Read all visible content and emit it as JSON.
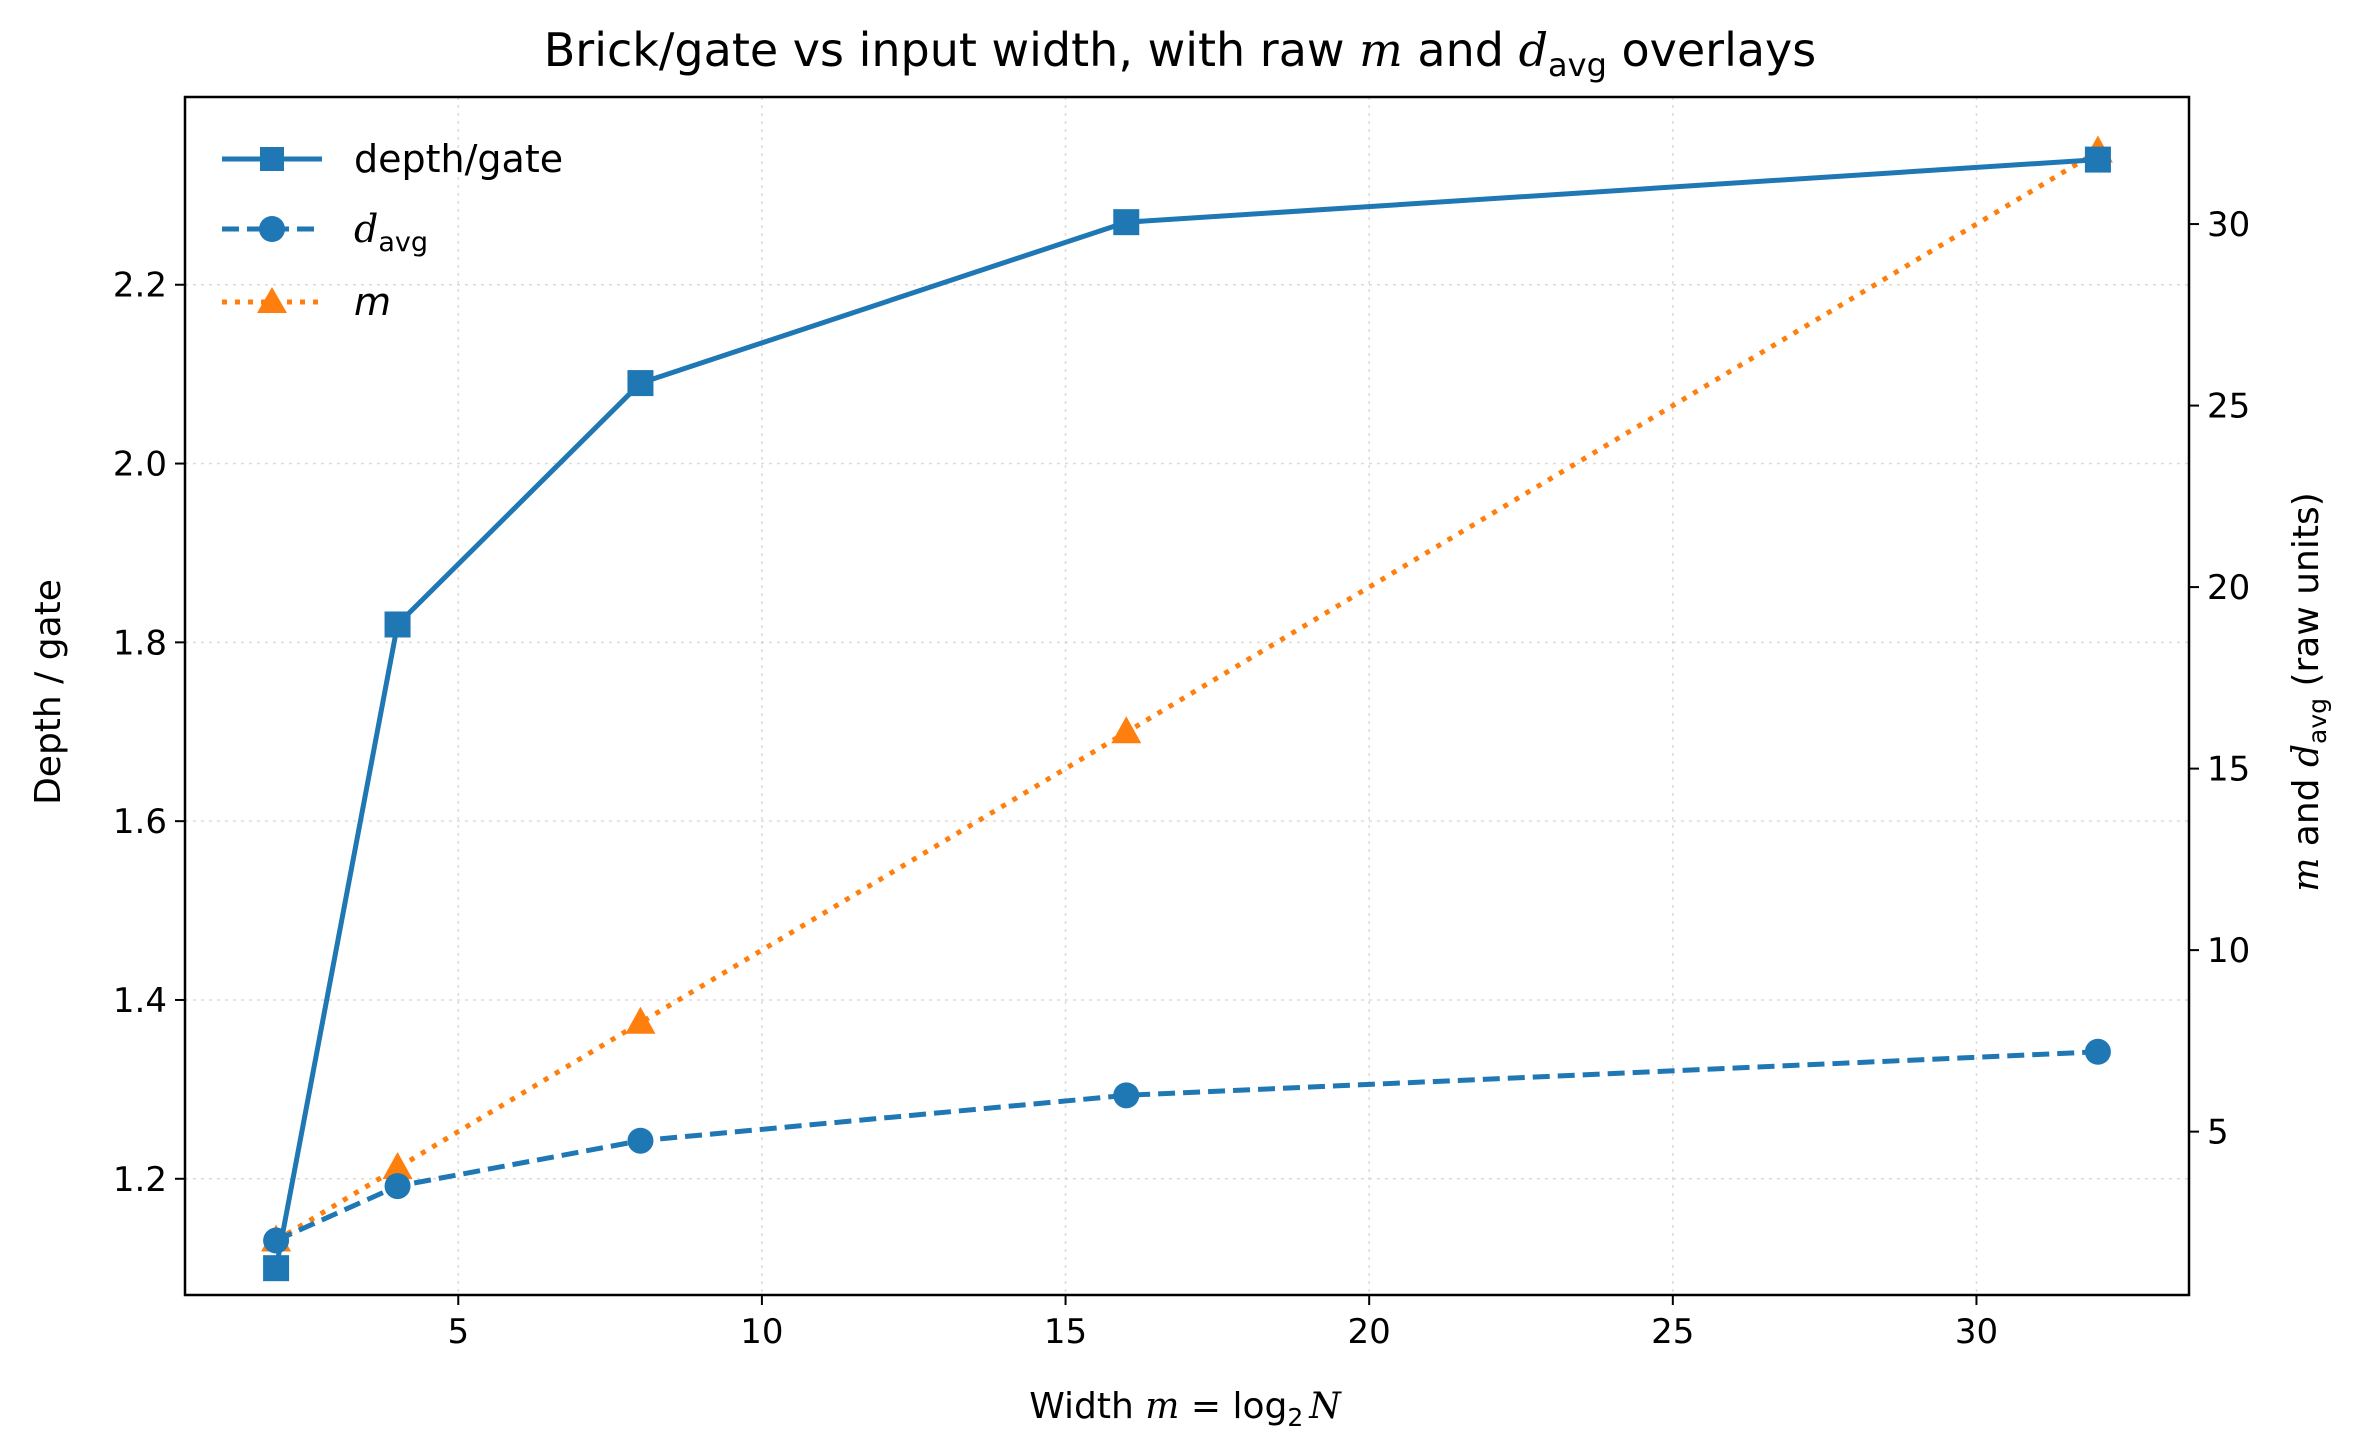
{
  "chart_data": {
    "type": "line",
    "title": "Brick/gate vs input width, with raw m and d_avg overlays",
    "title_parts": {
      "prefix": "Brick/gate vs input width, with raw ",
      "m": "m",
      "mid": " and ",
      "d": "d",
      "sub": "avg",
      "suffix": " overlays"
    },
    "xlabel": "Width m = log2 N",
    "xlabel_parts": {
      "prefix": "Width ",
      "m": "m",
      "eq": " = log",
      "sub": "2",
      "n": "N"
    },
    "ylabel_left": "Depth / gate",
    "ylabel_right": "m and d_avg (raw units)",
    "ylabel_right_parts": {
      "m": "m",
      "mid": " and ",
      "d": "d",
      "sub": "avg",
      "suffix": " (raw units)"
    },
    "x": [
      2,
      4,
      8,
      16,
      32
    ],
    "xlim": [
      0.5,
      33.5
    ],
    "xticks": [
      5,
      10,
      15,
      20,
      25,
      30
    ],
    "ylim_left": [
      1.07,
      2.41
    ],
    "yticks_left": [
      1.2,
      1.4,
      1.6,
      1.8,
      2.0,
      2.2
    ],
    "ylim_right": [
      0.5,
      33.5
    ],
    "yticks_right": [
      5,
      10,
      15,
      20,
      25,
      30
    ],
    "grid": true,
    "legend_position": "top-left",
    "series": [
      {
        "name": "depth/gate",
        "axis": "left",
        "values": [
          1.1,
          1.82,
          2.09,
          2.27,
          2.34
        ],
        "color": "#1f77b4",
        "style": "solid",
        "marker": "square"
      },
      {
        "name": "d_avg",
        "axis": "right",
        "values": [
          2.0,
          3.5,
          4.75,
          6.0,
          7.2
        ],
        "color": "#1f77b4",
        "style": "dashed",
        "marker": "circle"
      },
      {
        "name": "m",
        "axis": "right",
        "values": [
          2,
          4,
          8,
          16,
          32
        ],
        "color": "#ff7f0e",
        "style": "dotted",
        "marker": "triangle"
      }
    ],
    "legend": {
      "depth": "depth/gate",
      "davg": {
        "d": "d",
        "sub": "avg"
      },
      "m": "m"
    }
  }
}
